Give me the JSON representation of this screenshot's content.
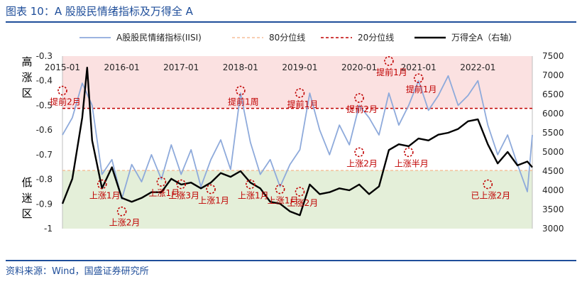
{
  "figure": {
    "title": "图表 10：A 股股民情绪指标及万得全 A",
    "source": "资料来源：Wind，国盛证券研究所"
  },
  "colors": {
    "isi_line": "#8eaadb",
    "pct80_line": "#f4b183",
    "pct20_line": "#c00000",
    "wind_line": "#000000",
    "high_zone": "#fbe1e1",
    "low_zone": "#e4efd9",
    "marker": "#c00000",
    "annotation": "#c00000",
    "frame": "#1f4e9a"
  },
  "chart_data": {
    "type": "line",
    "x_tick_labels": [
      "2015-01",
      "2016-01",
      "2017-01",
      "2018-01",
      "2019-01",
      "2020-01",
      "2021-01",
      "2022-01"
    ],
    "x_range": [
      "2015-01",
      "2022-12"
    ],
    "y_left": {
      "ticks": [
        "-0.3",
        "-0.4",
        "-0.5",
        "-0.6",
        "-0.7",
        "-0.8",
        "-0.9",
        "-1"
      ],
      "range": [
        -1.0,
        -0.3
      ]
    },
    "y_right": {
      "ticks": [
        "7500",
        "7000",
        "6500",
        "6000",
        "5500",
        "5000",
        "4500",
        "4000",
        "3500",
        "3000"
      ],
      "range": [
        3000,
        7500
      ]
    },
    "zones": [
      {
        "label": "高涨区",
        "from": -0.3,
        "to": -0.512,
        "color": "high_zone"
      },
      {
        "label": "低迷区",
        "from": -0.764,
        "to": -1.0,
        "color": "low_zone"
      }
    ],
    "reference_lines": [
      {
        "name": "80分位线",
        "value": -0.764,
        "style": "dashed",
        "color": "pct80_line"
      },
      {
        "name": "20分位线",
        "value": -0.512,
        "style": "dashed",
        "color": "pct20_line"
      }
    ],
    "series": [
      {
        "name": "A股股民情绪指标(IISI)",
        "axis": "left",
        "color": "isi_line",
        "points": [
          [
            "2015-01",
            -0.62
          ],
          [
            "2015-03",
            -0.55
          ],
          [
            "2015-05",
            -0.41
          ],
          [
            "2015-07",
            -0.5
          ],
          [
            "2015-09",
            -0.78
          ],
          [
            "2015-11",
            -0.72
          ],
          [
            "2016-01",
            -0.88
          ],
          [
            "2016-03",
            -0.74
          ],
          [
            "2016-05",
            -0.81
          ],
          [
            "2016-07",
            -0.7
          ],
          [
            "2016-09",
            -0.8
          ],
          [
            "2016-11",
            -0.66
          ],
          [
            "2017-01",
            -0.78
          ],
          [
            "2017-03",
            -0.68
          ],
          [
            "2017-05",
            -0.83
          ],
          [
            "2017-07",
            -0.72
          ],
          [
            "2017-09",
            -0.64
          ],
          [
            "2017-11",
            -0.76
          ],
          [
            "2018-01",
            -0.45
          ],
          [
            "2018-03",
            -0.65
          ],
          [
            "2018-05",
            -0.78
          ],
          [
            "2018-07",
            -0.72
          ],
          [
            "2018-09",
            -0.83
          ],
          [
            "2018-11",
            -0.74
          ],
          [
            "2019-01",
            -0.68
          ],
          [
            "2019-03",
            -0.45
          ],
          [
            "2019-05",
            -0.6
          ],
          [
            "2019-07",
            -0.7
          ],
          [
            "2019-09",
            -0.58
          ],
          [
            "2019-11",
            -0.66
          ],
          [
            "2020-01",
            -0.5
          ],
          [
            "2020-03",
            -0.55
          ],
          [
            "2020-05",
            -0.62
          ],
          [
            "2020-07",
            -0.45
          ],
          [
            "2020-09",
            -0.58
          ],
          [
            "2020-11",
            -0.5
          ],
          [
            "2021-01",
            -0.4
          ],
          [
            "2021-03",
            -0.52
          ],
          [
            "2021-05",
            -0.46
          ],
          [
            "2021-07",
            -0.38
          ],
          [
            "2021-09",
            -0.5
          ],
          [
            "2021-11",
            -0.46
          ],
          [
            "2022-01",
            -0.4
          ],
          [
            "2022-03",
            -0.58
          ],
          [
            "2022-05",
            -0.7
          ],
          [
            "2022-07",
            -0.62
          ],
          [
            "2022-09",
            -0.74
          ],
          [
            "2022-11",
            -0.85
          ],
          [
            "2022-12",
            -0.62
          ]
        ]
      },
      {
        "name": "万得全A（右轴）",
        "axis": "right",
        "color": "wind_line",
        "points": [
          [
            "2015-01",
            3650
          ],
          [
            "2015-03",
            4300
          ],
          [
            "2015-05",
            5900
          ],
          [
            "2015-06",
            7200
          ],
          [
            "2015-07",
            5300
          ],
          [
            "2015-09",
            4050
          ],
          [
            "2015-11",
            4600
          ],
          [
            "2016-01",
            3800
          ],
          [
            "2016-03",
            3700
          ],
          [
            "2016-05",
            3800
          ],
          [
            "2016-07",
            3950
          ],
          [
            "2016-09",
            3950
          ],
          [
            "2016-11",
            4300
          ],
          [
            "2017-01",
            4150
          ],
          [
            "2017-03",
            4200
          ],
          [
            "2017-05",
            4050
          ],
          [
            "2017-07",
            4200
          ],
          [
            "2017-09",
            4450
          ],
          [
            "2017-11",
            4350
          ],
          [
            "2018-01",
            4500
          ],
          [
            "2018-03",
            4200
          ],
          [
            "2018-05",
            4050
          ],
          [
            "2018-07",
            3700
          ],
          [
            "2018-09",
            3650
          ],
          [
            "2018-11",
            3450
          ],
          [
            "2019-01",
            3350
          ],
          [
            "2019-03",
            4150
          ],
          [
            "2019-05",
            3900
          ],
          [
            "2019-07",
            3950
          ],
          [
            "2019-09",
            4050
          ],
          [
            "2019-11",
            4000
          ],
          [
            "2020-01",
            4150
          ],
          [
            "2020-03",
            3900
          ],
          [
            "2020-05",
            4100
          ],
          [
            "2020-07",
            5050
          ],
          [
            "2020-09",
            5200
          ],
          [
            "2020-11",
            5150
          ],
          [
            "2021-01",
            5350
          ],
          [
            "2021-03",
            5300
          ],
          [
            "2021-05",
            5450
          ],
          [
            "2021-07",
            5500
          ],
          [
            "2021-09",
            5600
          ],
          [
            "2021-11",
            5800
          ],
          [
            "2022-01",
            5850
          ],
          [
            "2022-03",
            5200
          ],
          [
            "2022-05",
            4700
          ],
          [
            "2022-07",
            5000
          ],
          [
            "2022-09",
            4650
          ],
          [
            "2022-11",
            4750
          ],
          [
            "2022-12",
            4600
          ]
        ]
      }
    ],
    "annotations": [
      {
        "text": "提前2月",
        "at": [
          "2015-01",
          -0.44
        ]
      },
      {
        "text": "上涨1月",
        "at": [
          "2015-09",
          -0.82
        ]
      },
      {
        "text": "上涨2月",
        "at": [
          "2016-01",
          -0.93
        ]
      },
      {
        "text": "上涨1月",
        "at": [
          "2016-09",
          -0.81
        ]
      },
      {
        "text": "上涨3月",
        "at": [
          "2017-01",
          -0.82
        ]
      },
      {
        "text": "上涨1月",
        "at": [
          "2017-07",
          -0.84
        ]
      },
      {
        "text": "提前1周",
        "at": [
          "2018-01",
          -0.44
        ]
      },
      {
        "text": "上涨1月",
        "at": [
          "2018-03",
          -0.82
        ]
      },
      {
        "text": "上涨1月",
        "at": [
          "2018-09",
          -0.84
        ]
      },
      {
        "text": "提前1月",
        "at": [
          "2019-01",
          -0.45
        ]
      },
      {
        "text": "上涨2月",
        "at": [
          "2019-01",
          -0.85
        ]
      },
      {
        "text": "上涨2月",
        "at": [
          "2020-01",
          -0.69
        ]
      },
      {
        "text": "提前2月",
        "at": [
          "2020-01",
          -0.47
        ]
      },
      {
        "text": "提前1月",
        "at": [
          "2020-07",
          -0.32
        ]
      },
      {
        "text": "上涨半月",
        "at": [
          "2020-11",
          -0.69
        ]
      },
      {
        "text": "提前1月",
        "at": [
          "2021-01",
          -0.39
        ]
      },
      {
        "text": "已上涨2月",
        "at": [
          "2022-03",
          -0.82
        ]
      }
    ],
    "legend": {
      "placement": "top",
      "entries": [
        "A股股民情绪指标(IISI)",
        "80分位线",
        "20分位线",
        "万得全A（右轴）"
      ]
    },
    "zone_labels": [
      "高涨区",
      "低迷区"
    ]
  }
}
